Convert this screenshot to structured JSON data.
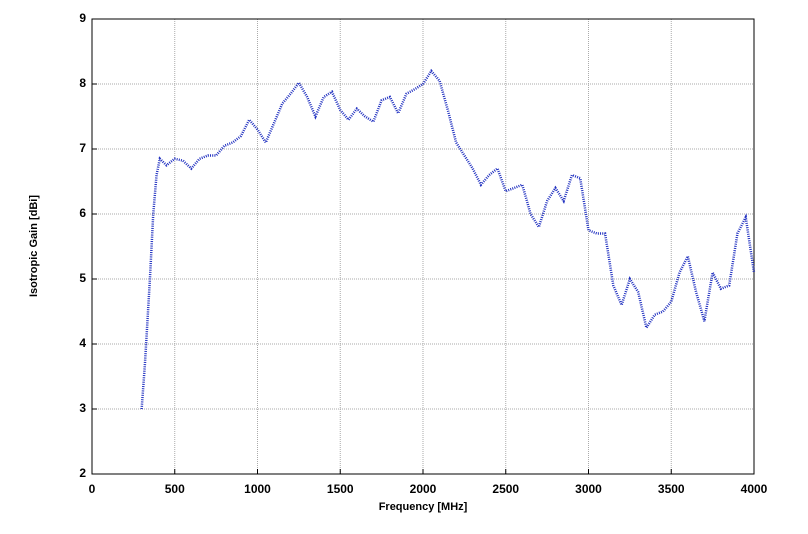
{
  "chart_data": {
    "type": "line",
    "x_label": "Frequency [MHz]",
    "y_label": "Isotropic Gain [dBi]",
    "xlim": [
      0,
      4000
    ],
    "xticks": [
      0,
      500,
      1000,
      1500,
      2000,
      2500,
      3000,
      3500,
      4000
    ],
    "ylim": [
      2,
      9
    ],
    "yticks": [
      2,
      3,
      4,
      5,
      6,
      7,
      8,
      9
    ],
    "grid": true,
    "x": [
      300,
      320,
      350,
      370,
      390,
      410,
      450,
      500,
      550,
      600,
      650,
      700,
      750,
      800,
      850,
      900,
      950,
      1000,
      1050,
      1100,
      1150,
      1200,
      1250,
      1300,
      1350,
      1400,
      1450,
      1500,
      1550,
      1600,
      1650,
      1700,
      1750,
      1800,
      1850,
      1900,
      1950,
      2000,
      2050,
      2100,
      2150,
      2200,
      2250,
      2300,
      2350,
      2400,
      2450,
      2500,
      2550,
      2600,
      2650,
      2700,
      2750,
      2800,
      2850,
      2900,
      2950,
      3000,
      3050,
      3100,
      3150,
      3200,
      3250,
      3300,
      3350,
      3400,
      3450,
      3500,
      3550,
      3600,
      3650,
      3700,
      3750,
      3800,
      3850,
      3900,
      3950,
      4000
    ],
    "series": [
      {
        "name": "gain",
        "color": "#2030c0",
        "values": [
          3.0,
          3.7,
          5.0,
          6.0,
          6.6,
          6.85,
          6.75,
          6.85,
          6.82,
          6.7,
          6.85,
          6.9,
          6.9,
          7.05,
          7.1,
          7.2,
          7.45,
          7.3,
          7.1,
          7.4,
          7.7,
          7.85,
          8.02,
          7.8,
          7.5,
          7.8,
          7.88,
          7.6,
          7.45,
          7.62,
          7.5,
          7.42,
          7.75,
          7.8,
          7.55,
          7.85,
          7.92,
          8.0,
          8.2,
          8.05,
          7.6,
          7.1,
          6.9,
          6.7,
          6.45,
          6.6,
          6.7,
          6.35,
          6.4,
          6.45,
          6.0,
          5.8,
          6.2,
          6.4,
          6.2,
          6.6,
          6.55,
          5.75,
          5.7,
          5.7,
          4.9,
          4.6,
          5.0,
          4.8,
          4.25,
          4.45,
          4.5,
          4.65,
          5.1,
          5.35,
          4.8,
          4.35,
          5.1,
          4.85,
          4.9,
          5.7,
          5.95,
          5.1
        ]
      }
    ]
  }
}
